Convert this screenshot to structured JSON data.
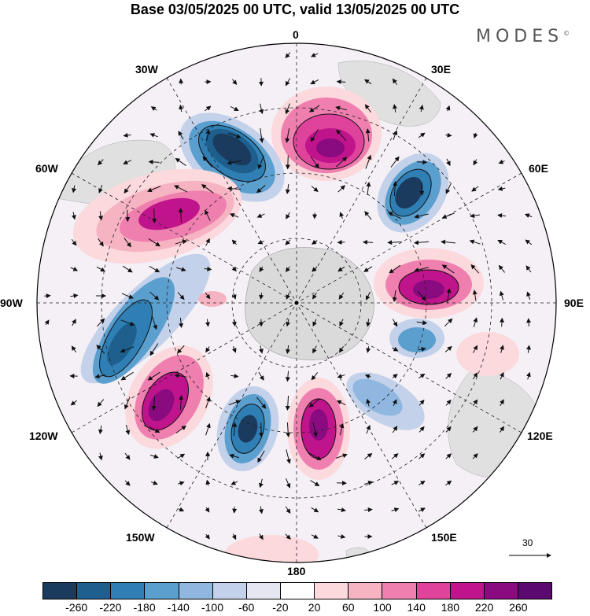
{
  "title": "Base 03/05/2025 00 UTC, valid 13/05/2025 00 UTC",
  "logo": "MODES",
  "logo_mark": "©",
  "meridian_labels": {
    "top": "0",
    "top_right": "30E",
    "upper_right": "60E",
    "right": "90E",
    "lower_right": "120E",
    "bottom_right": "150E",
    "bottom": "180",
    "bottom_left": "150W",
    "lower_left": "120W",
    "left": "90W",
    "upper_left": "60W",
    "top_left": "30W"
  },
  "reference_vector_label": "30",
  "colorbar": {
    "labels": [
      "-260",
      "-220",
      "-180",
      "-140",
      "-100",
      "-60",
      "-20",
      "20",
      "60",
      "100",
      "140",
      "180",
      "220",
      "260"
    ],
    "colors": [
      "#1b3b5e",
      "#1e5f8e",
      "#2f7fb5",
      "#5b9fcf",
      "#8fb7df",
      "#c3d1ea",
      "#e6e6f2",
      "#ffffff",
      "#fbd9dd",
      "#f6b3c2",
      "#ee7fae",
      "#e0439b",
      "#c0148c",
      "#8a0a80",
      "#5b0870"
    ]
  }
}
